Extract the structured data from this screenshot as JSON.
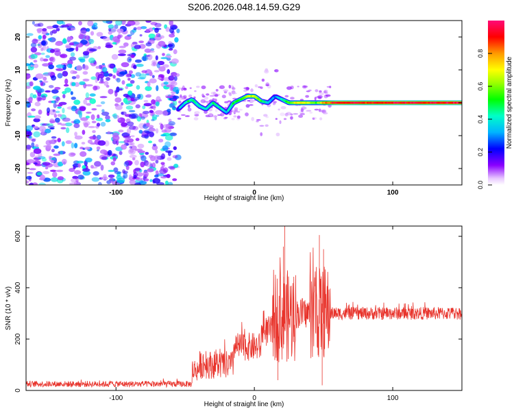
{
  "figure_title": "S206.2026.048.14.59.G29",
  "colors": {
    "snr_line": "#e8332b",
    "scatter_light": "#d9b8ff",
    "scatter_dark": "#7a1fff",
    "frame": "#000000"
  },
  "chart_data": [
    {
      "type": "heatmap",
      "title": "S206.2026.048.14.59.G29",
      "xlabel": "Height of straight line (km)",
      "ylabel": "Frequency (Hz)",
      "xlim": [
        -165,
        150
      ],
      "ylim": [
        -25,
        25
      ],
      "xticks": [
        -100,
        0,
        100
      ],
      "yticks": [
        -20,
        -10,
        0,
        10,
        20
      ],
      "noise_region": {
        "x_range": [
          -165,
          -55
        ],
        "freq_range": [
          -25,
          25
        ],
        "amplitude_range": [
          0.05,
          0.45
        ]
      },
      "ridge": [
        {
          "x": -55,
          "freq": -2.0,
          "amp": 0.3
        },
        {
          "x": -50,
          "freq": 0.0,
          "amp": 0.4
        },
        {
          "x": -45,
          "freq": 1.0,
          "amp": 0.5
        },
        {
          "x": -40,
          "freq": -1.0,
          "amp": 0.45
        },
        {
          "x": -35,
          "freq": -2.0,
          "amp": 0.4
        },
        {
          "x": -30,
          "freq": 0.0,
          "amp": 0.45
        },
        {
          "x": -25,
          "freq": -1.5,
          "amp": 0.4
        },
        {
          "x": -20,
          "freq": -3.0,
          "amp": 0.35
        },
        {
          "x": -15,
          "freq": 0.0,
          "amp": 0.5
        },
        {
          "x": -10,
          "freq": 1.0,
          "amp": 0.55
        },
        {
          "x": -5,
          "freq": 2.0,
          "amp": 0.65
        },
        {
          "x": 0,
          "freq": 2.0,
          "amp": 0.7
        },
        {
          "x": 5,
          "freq": 0.5,
          "amp": 0.5
        },
        {
          "x": 10,
          "freq": 0.0,
          "amp": 0.4
        },
        {
          "x": 15,
          "freq": 2.0,
          "amp": 0.3
        },
        {
          "x": 20,
          "freq": 1.0,
          "amp": 0.45
        },
        {
          "x": 25,
          "freq": 0.0,
          "amp": 0.6
        },
        {
          "x": 30,
          "freq": 0.0,
          "amp": 0.7
        },
        {
          "x": 35,
          "freq": 0.0,
          "amp": 0.75
        },
        {
          "x": 40,
          "freq": 0.0,
          "amp": 0.65
        },
        {
          "x": 45,
          "freq": 0.0,
          "amp": 0.55
        },
        {
          "x": 50,
          "freq": 0.0,
          "amp": 0.8
        },
        {
          "x": 60,
          "freq": 0.0,
          "amp": 0.95
        },
        {
          "x": 80,
          "freq": 0.0,
          "amp": 0.9
        },
        {
          "x": 100,
          "freq": 0.0,
          "amp": 0.95
        },
        {
          "x": 120,
          "freq": 0.0,
          "amp": 0.92
        },
        {
          "x": 140,
          "freq": 0.0,
          "amp": 0.95
        },
        {
          "x": 150,
          "freq": 0.0,
          "amp": 0.95
        }
      ]
    },
    {
      "type": "colorbar",
      "label": "Normalized spectral amplitude",
      "range": [
        0,
        1
      ],
      "ticks": [
        "0.0",
        "0.2",
        "0.4",
        "0.6",
        "0.8"
      ],
      "tick_values": [
        0,
        0.2,
        0.4,
        0.6,
        0.8
      ]
    },
    {
      "type": "line",
      "xlabel": "Height of straight line (km)",
      "ylabel": "SNR (10 * v/v)",
      "xlim": [
        -165,
        150
      ],
      "ylim": [
        0,
        640
      ],
      "xticks": [
        -100,
        0,
        100
      ],
      "yticks": [
        0,
        200,
        400,
        600
      ],
      "segments": [
        {
          "x_range": [
            -165,
            -45
          ],
          "mean": 25,
          "noise": 12
        },
        {
          "x_range": [
            -45,
            -40
          ],
          "mean": 80,
          "noise": 45
        },
        {
          "x_range": [
            -40,
            -15
          ],
          "mean": 100,
          "noise": 55
        },
        {
          "x_range": [
            -15,
            5
          ],
          "mean": 170,
          "noise": 55
        },
        {
          "x_range": [
            5,
            13
          ],
          "mean": 230,
          "noise": 60
        },
        {
          "x_range": [
            13,
            30
          ],
          "mean": 290,
          "noise": 180
        },
        {
          "x_range": [
            30,
            40
          ],
          "mean": 300,
          "noise": 60
        },
        {
          "x_range": [
            40,
            55
          ],
          "mean": 300,
          "noise": 180
        },
        {
          "x_range": [
            55,
            150
          ],
          "mean": 300,
          "noise": 25
        }
      ],
      "peaks": [
        {
          "x": 22,
          "value": 640
        },
        {
          "x": 21,
          "value": 560
        },
        {
          "x": 47,
          "value": 605
        },
        {
          "x": 50,
          "value": 550
        },
        {
          "x": 17,
          "value": 40
        },
        {
          "x": 49,
          "value": 20
        }
      ]
    }
  ]
}
